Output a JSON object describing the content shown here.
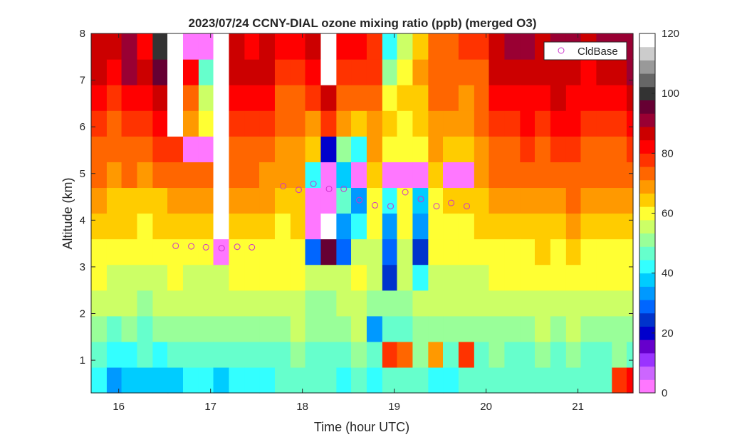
{
  "chart_data": {
    "type": "heatmap",
    "title": "2023/07/24 CCNY-DIAL ozone mixing ratio (ppb) (merged O3)",
    "xlabel": "Time (hour UTC)",
    "ylabel": "Altitude (km)",
    "xlim": [
      15.7,
      21.6
    ],
    "ylim": [
      0.3,
      8
    ],
    "xticks": [
      16,
      17,
      18,
      19,
      20,
      21
    ],
    "yticks": [
      1,
      2,
      3,
      4,
      5,
      6,
      7,
      8
    ],
    "colorbar": {
      "ticks": [
        0,
        20,
        40,
        60,
        80,
        100,
        120
      ],
      "range": [
        0,
        120
      ],
      "colormap": [
        "#ff77ff",
        "#cc66ff",
        "#9a33ff",
        "#6600cc",
        "#0000cc",
        "#0033cc",
        "#0066ff",
        "#0099ff",
        "#00ccff",
        "#33ffff",
        "#66ffcc",
        "#99ff99",
        "#ccff66",
        "#ffff33",
        "#ffcc00",
        "#ff9900",
        "#ff6600",
        "#ff3300",
        "#ff0000",
        "#cc0000",
        "#990033",
        "#660033",
        "#333333",
        "#666666",
        "#999999",
        "#cccccc",
        "#ffffff"
      ]
    },
    "profile_interval_hr": 0.1667,
    "profile_times": [
      15.7,
      15.87,
      16.03,
      16.2,
      16.37,
      16.53,
      16.7,
      16.87,
      17.03,
      17.2,
      17.37,
      17.53,
      17.7,
      17.87,
      18.03,
      18.2,
      18.37,
      18.53,
      18.7,
      18.87,
      19.03,
      19.2,
      19.37,
      19.53,
      19.7,
      19.87,
      20.03,
      20.2,
      20.37,
      20.53,
      20.7,
      20.87,
      21.03,
      21.2,
      21.37,
      21.53
    ],
    "legend": {
      "label": "CldBase",
      "marker": "circle",
      "color": "#cc33cc",
      "placement": "top-right"
    },
    "cloud_base": {
      "x": [
        16.62,
        16.79,
        16.95,
        17.12,
        17.29,
        17.45,
        17.79,
        17.96,
        18.12,
        18.29,
        18.45,
        18.62,
        18.79,
        18.96,
        19.12,
        19.29,
        19.46,
        19.62,
        19.79
      ],
      "y": [
        3.45,
        3.44,
        3.42,
        3.4,
        3.43,
        3.42,
        4.73,
        4.65,
        4.78,
        4.67,
        4.67,
        4.43,
        4.32,
        4.3,
        4.6,
        4.45,
        4.3,
        4.37,
        4.3
      ]
    },
    "values_ppb": [
      [
        42,
        45,
        50,
        54,
        58,
        62,
        65,
        68,
        72,
        76,
        80,
        84,
        88,
        88
      ],
      [
        34,
        40,
        48,
        54,
        56,
        60,
        64,
        66,
        70,
        74,
        76,
        80,
        84,
        86
      ],
      [
        36,
        42,
        50,
        54,
        56,
        60,
        64,
        66,
        72,
        76,
        80,
        84,
        90,
        90
      ],
      [
        38,
        44,
        48,
        52,
        56,
        60,
        62,
        66,
        70,
        74,
        78,
        82,
        86,
        84
      ],
      [
        36,
        42,
        50,
        54,
        56,
        60,
        64,
        66,
        72,
        78,
        84,
        88,
        96,
        100
      ],
      [
        38,
        44,
        50,
        54,
        58,
        60,
        64,
        68,
        74,
        78,
        120,
        120,
        120,
        120
      ],
      [
        40,
        44,
        50,
        54,
        56,
        60,
        64,
        70,
        76,
        0,
        70,
        74,
        82,
        0
      ],
      [
        40,
        46,
        50,
        54,
        56,
        60,
        64,
        68,
        72,
        0,
        60,
        56,
        48,
        0
      ],
      [
        38,
        44,
        50,
        54,
        56,
        0,
        120,
        120,
        120,
        120,
        120,
        120,
        120,
        120
      ],
      [
        40,
        44,
        50,
        54,
        58,
        62,
        66,
        70,
        74,
        76,
        80,
        84,
        88,
        86
      ],
      [
        40,
        46,
        50,
        54,
        58,
        62,
        64,
        68,
        72,
        76,
        78,
        82,
        86,
        84
      ],
      [
        42,
        46,
        50,
        54,
        58,
        60,
        64,
        68,
        70,
        74,
        78,
        82,
        86,
        88
      ],
      [
        44,
        48,
        52,
        54,
        58,
        60,
        62,
        66,
        68,
        70,
        74,
        76,
        80,
        82
      ],
      [
        46,
        50,
        54,
        56,
        58,
        62,
        64,
        66,
        68,
        70,
        72,
        76,
        80,
        84
      ],
      [
        46,
        48,
        50,
        52,
        54,
        28,
        0,
        0,
        40,
        64,
        70,
        78,
        84,
        88
      ],
      [
        44,
        48,
        50,
        52,
        56,
        96,
        120,
        0,
        0,
        20,
        80,
        86,
        120,
        120
      ],
      [
        42,
        48,
        52,
        54,
        56,
        28,
        34,
        44,
        36,
        50,
        70,
        74,
        80,
        84
      ],
      [
        44,
        50,
        54,
        56,
        58,
        56,
        40,
        32,
        0,
        40,
        66,
        72,
        78,
        82
      ],
      [
        42,
        46,
        30,
        52,
        54,
        56,
        58,
        62,
        66,
        68,
        70,
        74,
        78,
        80
      ],
      [
        44,
        78,
        46,
        52,
        24,
        26,
        30,
        40,
        0,
        58,
        64,
        62,
        50,
        40
      ],
      [
        44,
        76,
        48,
        50,
        54,
        56,
        58,
        60,
        0,
        60,
        62,
        66,
        60,
        56
      ],
      [
        44,
        50,
        52,
        54,
        42,
        24,
        30,
        38,
        0,
        62,
        64,
        66,
        70,
        66
      ],
      [
        42,
        68,
        50,
        54,
        56,
        60,
        62,
        62,
        66,
        68,
        70,
        72,
        76,
        74
      ],
      [
        42,
        48,
        52,
        54,
        56,
        60,
        62,
        64,
        0,
        66,
        70,
        72,
        74,
        76
      ],
      [
        44,
        80,
        52,
        54,
        56,
        60,
        62,
        64,
        0,
        66,
        68,
        70,
        74,
        78
      ],
      [
        44,
        48,
        52,
        54,
        56,
        60,
        64,
        66,
        68,
        70,
        72,
        74,
        76,
        80
      ],
      [
        46,
        50,
        52,
        56,
        58,
        62,
        66,
        70,
        72,
        76,
        78,
        82,
        86,
        88
      ],
      [
        44,
        48,
        52,
        54,
        58,
        62,
        64,
        68,
        72,
        76,
        80,
        84,
        88,
        90
      ],
      [
        44,
        48,
        52,
        56,
        58,
        62,
        66,
        70,
        74,
        78,
        82,
        84,
        88,
        92
      ],
      [
        46,
        50,
        54,
        56,
        60,
        64,
        66,
        70,
        74,
        76,
        80,
        82,
        86,
        88
      ],
      [
        44,
        48,
        52,
        56,
        58,
        62,
        66,
        70,
        76,
        80,
        82,
        86,
        88,
        90
      ],
      [
        46,
        50,
        54,
        56,
        60,
        64,
        68,
        72,
        76,
        78,
        82,
        84,
        88,
        90
      ],
      [
        44,
        48,
        52,
        56,
        60,
        62,
        66,
        70,
        72,
        76,
        80,
        82,
        84,
        88
      ],
      [
        46,
        48,
        52,
        56,
        60,
        62,
        66,
        70,
        74,
        76,
        80,
        84,
        86,
        90
      ],
      [
        78,
        50,
        52,
        56,
        58,
        62,
        64,
        68,
        72,
        76,
        80,
        84,
        88,
        90
      ],
      [
        82,
        48,
        52,
        56,
        60,
        62,
        66,
        70,
        74,
        78,
        82,
        86,
        90,
        92
      ]
    ]
  }
}
